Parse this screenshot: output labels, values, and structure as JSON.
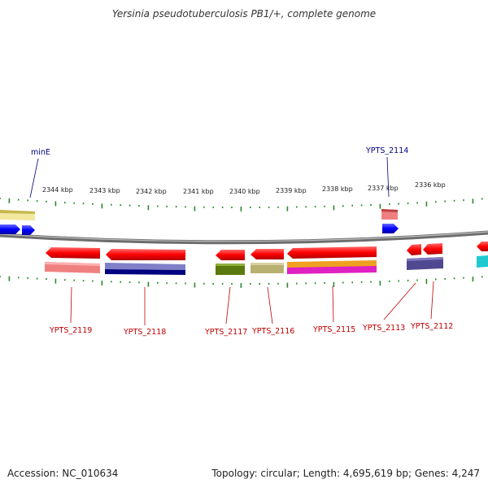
{
  "title": "Yersinia pseudotuberculosis PB1/+, complete genome",
  "footer": {
    "accession": "Accession: NC_010634",
    "summary": "Topology: circular; Length: 4,695,619 bp; Genes: 4,247"
  },
  "scale": {
    "unit": "kbp",
    "ticks": [
      "2344 kbp",
      "2343 kbp",
      "2342 kbp",
      "2341 kbp",
      "2340 kbp",
      "2339 kbp",
      "2338 kbp",
      "2337 kbp",
      "2336 kbp"
    ]
  },
  "top_labels": [
    "minE",
    "YPTS_2114"
  ],
  "bottom_labels": [
    "YPTS_2119",
    "YPTS_2118",
    "YPTS_2117",
    "YPTS_2116",
    "YPTS_2115",
    "YPTS_2113",
    "YPTS_2112"
  ],
  "colors": {
    "gene_arrow": "#ff0000",
    "forward_arrow": "#0000ff",
    "label_bottom": "#c00000",
    "label_top": "#000080",
    "tick": "#2a8a2a",
    "backbone": "#888888"
  }
}
